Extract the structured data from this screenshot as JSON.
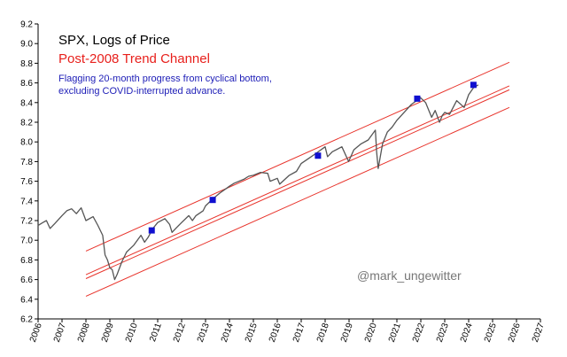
{
  "chart_data": {
    "type": "line",
    "title": "SPX, Logs of Price",
    "subtitle": "Post-2008 Trend Channel",
    "annotation_lines": [
      "Flagging 20-month progress from cyclical bottom,",
      "excluding COVID-interrupted advance."
    ],
    "watermark": "@mark_ungewitter",
    "xlabel": "",
    "ylabel": "",
    "xlim": [
      2006,
      2027
    ],
    "ylim": [
      6.2,
      9.2
    ],
    "x_ticks": [
      "2006",
      "2007",
      "2008",
      "2009",
      "2010",
      "2011",
      "2012",
      "2013",
      "2014",
      "2015",
      "2016",
      "2017",
      "2018",
      "2019",
      "2020",
      "2021",
      "2022",
      "2023",
      "2024",
      "2025",
      "2026",
      "2027"
    ],
    "y_ticks": [
      "6.2",
      "6.4",
      "6.6",
      "6.8",
      "7.0",
      "7.2",
      "7.4",
      "7.6",
      "7.8",
      "8.0",
      "8.2",
      "8.4",
      "8.6",
      "8.8",
      "9.0",
      "9.2"
    ],
    "grid": false,
    "series": [
      {
        "name": "SPX log price",
        "color": "#555555",
        "x": [
          2006.0,
          2006.2,
          2006.35,
          2006.5,
          2006.7,
          2007.0,
          2007.2,
          2007.4,
          2007.6,
          2007.8,
          2008.0,
          2008.3,
          2008.5,
          2008.7,
          2008.8,
          2008.9,
          2009.0,
          2009.1,
          2009.2,
          2009.3,
          2009.5,
          2009.7,
          2010.0,
          2010.3,
          2010.45,
          2010.6,
          2010.8,
          2011.0,
          2011.3,
          2011.5,
          2011.6,
          2011.75,
          2012.0,
          2012.3,
          2012.45,
          2012.6,
          2012.9,
          2013.0,
          2013.3,
          2013.6,
          2014.0,
          2014.2,
          2014.6,
          2014.8,
          2015.0,
          2015.3,
          2015.6,
          2015.7,
          2016.0,
          2016.1,
          2016.5,
          2016.8,
          2017.0,
          2017.3,
          2017.6,
          2018.0,
          2018.1,
          2018.3,
          2018.7,
          2018.98,
          2019.2,
          2019.5,
          2019.8,
          2020.1,
          2020.15,
          2020.22,
          2020.4,
          2020.6,
          2020.8,
          2021.0,
          2021.3,
          2021.6,
          2021.99,
          2022.2,
          2022.45,
          2022.6,
          2022.78,
          2022.9,
          2023.0,
          2023.2,
          2023.5,
          2023.81,
          2024.0,
          2024.2,
          2024.4
        ],
        "y": [
          7.15,
          7.18,
          7.2,
          7.12,
          7.17,
          7.25,
          7.3,
          7.32,
          7.27,
          7.33,
          7.2,
          7.24,
          7.15,
          7.05,
          6.85,
          6.8,
          6.72,
          6.7,
          6.6,
          6.65,
          6.78,
          6.88,
          6.95,
          7.05,
          6.98,
          7.03,
          7.12,
          7.18,
          7.22,
          7.16,
          7.08,
          7.12,
          7.18,
          7.25,
          7.2,
          7.25,
          7.3,
          7.35,
          7.42,
          7.48,
          7.55,
          7.58,
          7.62,
          7.65,
          7.66,
          7.69,
          7.68,
          7.6,
          7.63,
          7.57,
          7.66,
          7.7,
          7.78,
          7.83,
          7.88,
          7.95,
          7.85,
          7.9,
          7.95,
          7.8,
          7.92,
          7.98,
          8.02,
          8.12,
          7.9,
          7.73,
          7.98,
          8.1,
          8.15,
          8.22,
          8.3,
          8.38,
          8.45,
          8.4,
          8.25,
          8.32,
          8.2,
          8.27,
          8.3,
          8.28,
          8.42,
          8.35,
          8.48,
          8.55,
          8.58
        ]
      }
    ],
    "trend_channel": {
      "color": "#e8332b",
      "lines": [
        {
          "name": "upper-channel-line",
          "x": [
            2008.0,
            2025.7
          ],
          "y": [
            6.89,
            8.81
          ]
        },
        {
          "name": "mid-channel-line-1",
          "x": [
            2008.0,
            2025.7
          ],
          "y": [
            6.65,
            8.57
          ]
        },
        {
          "name": "mid-channel-line-2",
          "x": [
            2008.0,
            2025.7
          ],
          "y": [
            6.61,
            8.53
          ]
        },
        {
          "name": "lower-channel-line",
          "x": [
            2008.0,
            2025.7
          ],
          "y": [
            6.43,
            8.35
          ]
        }
      ]
    },
    "flag_markers": {
      "color": "#1010d0",
      "points": [
        {
          "x": 2010.75,
          "y": 7.1
        },
        {
          "x": 2013.3,
          "y": 7.41
        },
        {
          "x": 2017.7,
          "y": 7.86
        },
        {
          "x": 2021.85,
          "y": 8.44
        },
        {
          "x": 2024.2,
          "y": 8.58
        }
      ]
    }
  }
}
